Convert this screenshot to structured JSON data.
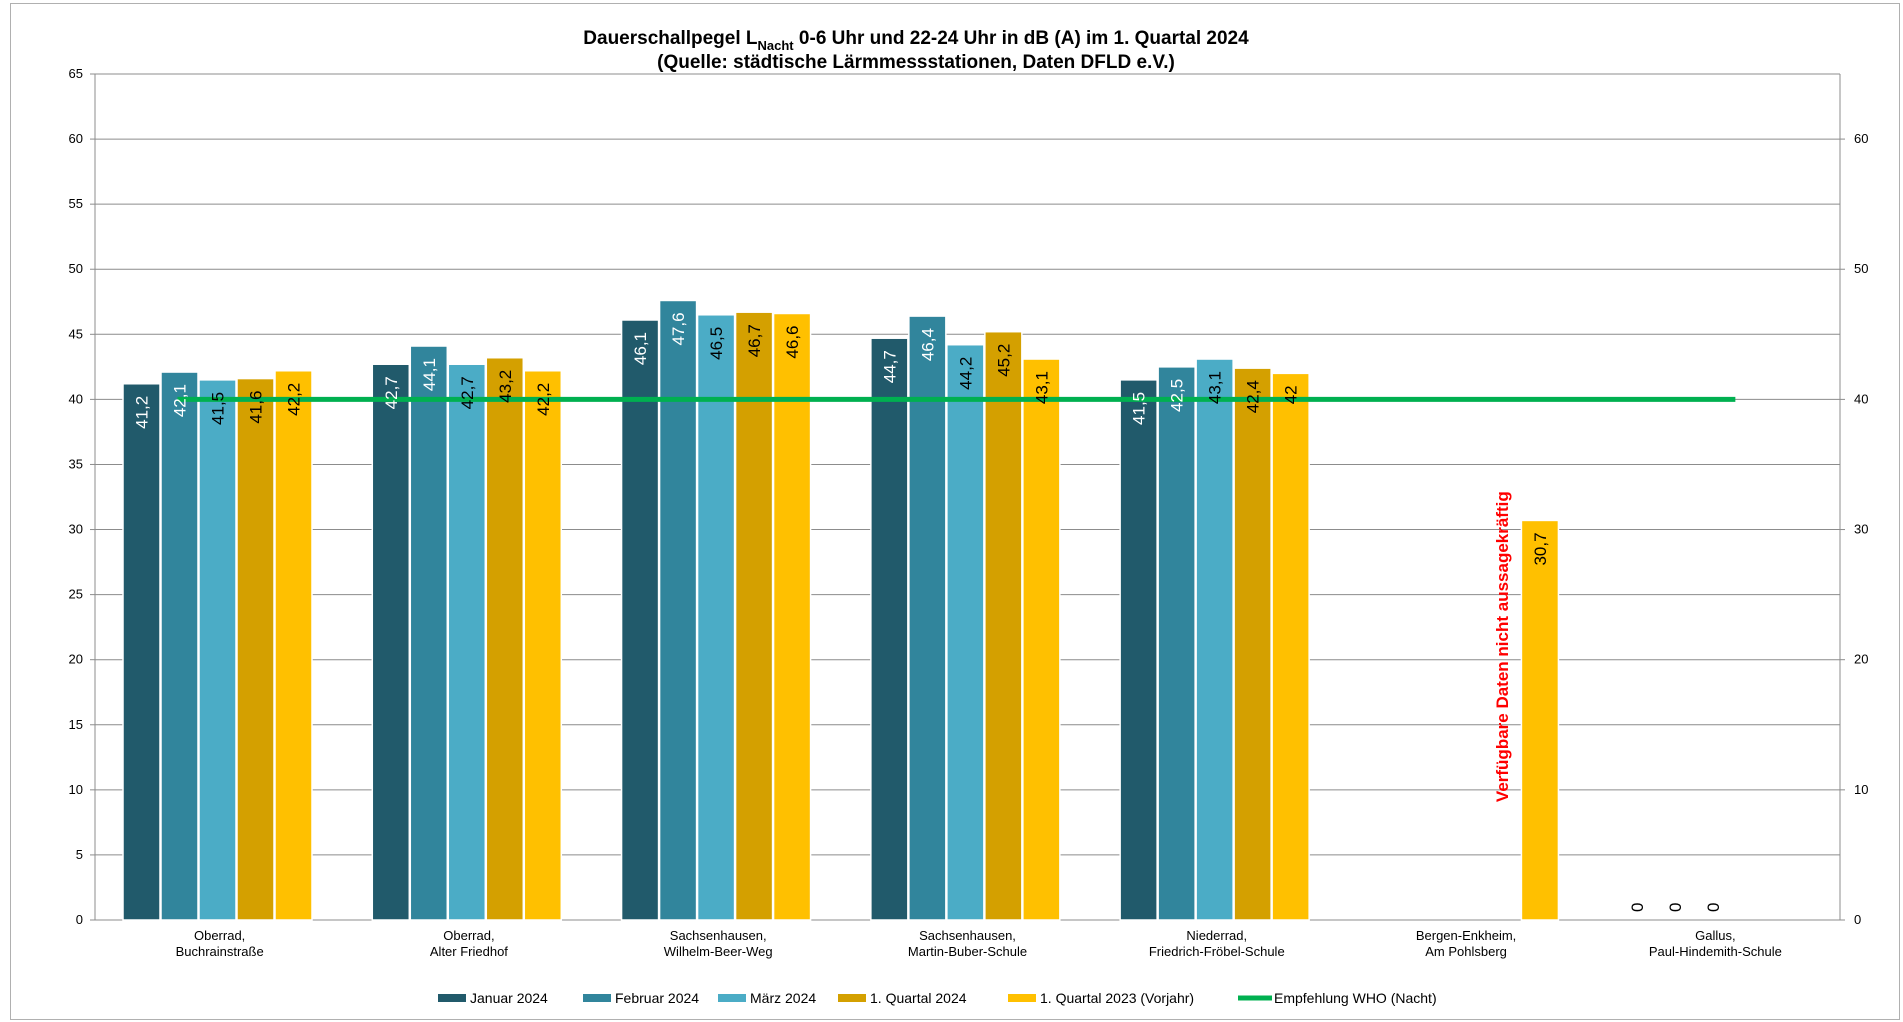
{
  "chart_data": {
    "type": "bar",
    "title_main": "Dauerschallpegel L",
    "title_sub": "Nacht",
    "title_rest": " 0-6 Uhr und 22-24 Uhr in dB (A) im 1. Quartal 2024",
    "title_line2": "(Quelle: städtische Lärmmessstationen, Daten DFLD e.V.)",
    "ylim": [
      0,
      65
    ],
    "y_ticks_left": [
      "0",
      "5",
      "10",
      "15",
      "20",
      "25",
      "30",
      "35",
      "40",
      "45",
      "50",
      "55",
      "60",
      "65"
    ],
    "y_ticks_right": [
      "0",
      "10",
      "20",
      "30",
      "40",
      "50",
      "60"
    ],
    "categories": [
      [
        "Oberrad,",
        "Buchrainstraße"
      ],
      [
        "Oberrad,",
        "Alter Friedhof"
      ],
      [
        "Sachsenhausen,",
        "Wilhelm-Beer-Weg"
      ],
      [
        "Sachsenhausen,",
        "Martin-Buber-Schule"
      ],
      [
        "Niederrad,",
        "Friedrich-Fröbel-Schule"
      ],
      [
        "Bergen-Enkheim,",
        "Am Pohlsberg"
      ],
      [
        "Gallus,",
        "Paul-Hindemith-Schule"
      ]
    ],
    "series": [
      {
        "name": "Januar 2024",
        "color": "#215a6b",
        "label_color": "#ffffff",
        "values": [
          41.2,
          42.7,
          46.1,
          44.7,
          41.5,
          null,
          0
        ],
        "labels": [
          "41,2",
          "42,7",
          "46,1",
          "44,7",
          "41,5",
          "",
          "0"
        ]
      },
      {
        "name": "Februar 2024",
        "color": "#31859c",
        "label_color": "#ffffff",
        "values": [
          42.1,
          44.1,
          47.6,
          46.4,
          42.5,
          null,
          0
        ],
        "labels": [
          "42,1",
          "44,1",
          "47,6",
          "46,4",
          "42,5",
          "",
          "0"
        ]
      },
      {
        "name": "März 2024",
        "color": "#4bacc6",
        "label_color": "#000000",
        "values": [
          41.5,
          42.7,
          46.5,
          44.2,
          43.1,
          null,
          0
        ],
        "labels": [
          "41,5",
          "42,7",
          "46,5",
          "44,2",
          "43,1",
          "",
          "0"
        ]
      },
      {
        "name": "1. Quartal 2024",
        "color": "#d4a000",
        "label_color": "#000000",
        "values": [
          41.6,
          43.2,
          46.7,
          45.2,
          42.4,
          null,
          null
        ],
        "labels": [
          "41,6",
          "43,2",
          "46,7",
          "45,2",
          "42,4",
          "",
          ""
        ]
      },
      {
        "name": "1. Quartal 2023 (Vorjahr)",
        "color": "#ffc000",
        "label_color": "#000000",
        "values": [
          42.2,
          42.2,
          46.6,
          43.1,
          42,
          30.7,
          null
        ],
        "labels": [
          "42,2",
          "42,2",
          "46,6",
          "43,1",
          "42",
          "30,7",
          ""
        ]
      }
    ],
    "reference_line": {
      "name": "Empfehlung WHO (Nacht)",
      "value": 40,
      "color": "#00b050"
    },
    "annotation": {
      "text": "Verfügbare Daten nicht aussagekräftig",
      "color": "#ff0000"
    },
    "grid": true,
    "legend_position": "bottom"
  }
}
